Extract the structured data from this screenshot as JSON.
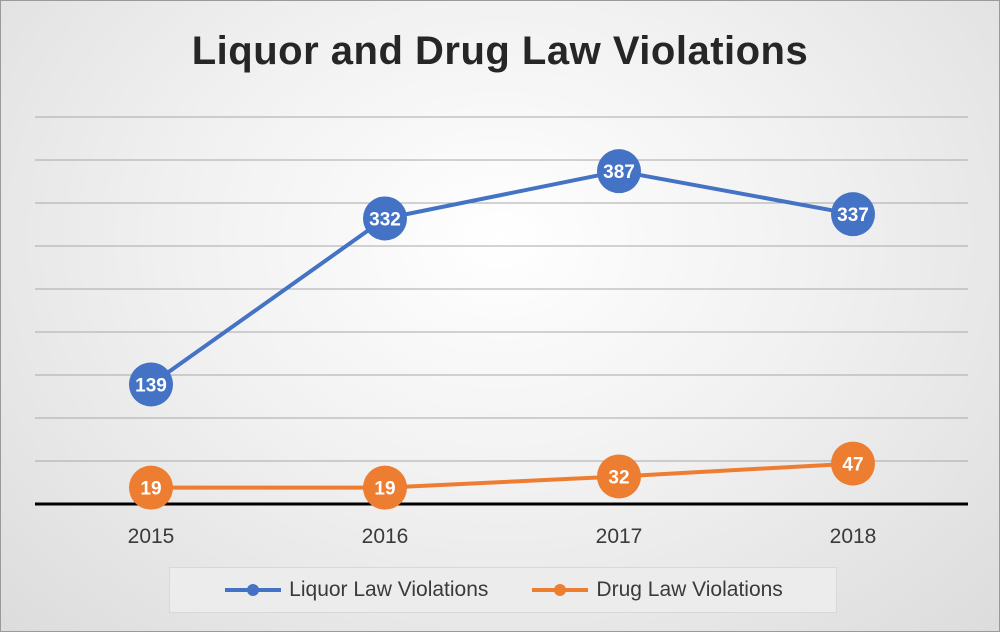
{
  "chart_data": {
    "type": "line",
    "title": "Liquor and Drug Law Violations",
    "categories": [
      "2015",
      "2016",
      "2017",
      "2018"
    ],
    "series": [
      {
        "name": "Liquor Law Violations",
        "values": [
          139,
          332,
          387,
          337
        ],
        "color": "#4472C4"
      },
      {
        "name": "Drug Law Violations",
        "values": [
          19,
          19,
          32,
          47
        ],
        "color": "#ED7D31"
      }
    ],
    "ylim": [
      0,
      450
    ],
    "y_grid_step": 50,
    "grid": true,
    "data_labels": true,
    "legend_position": "bottom"
  }
}
